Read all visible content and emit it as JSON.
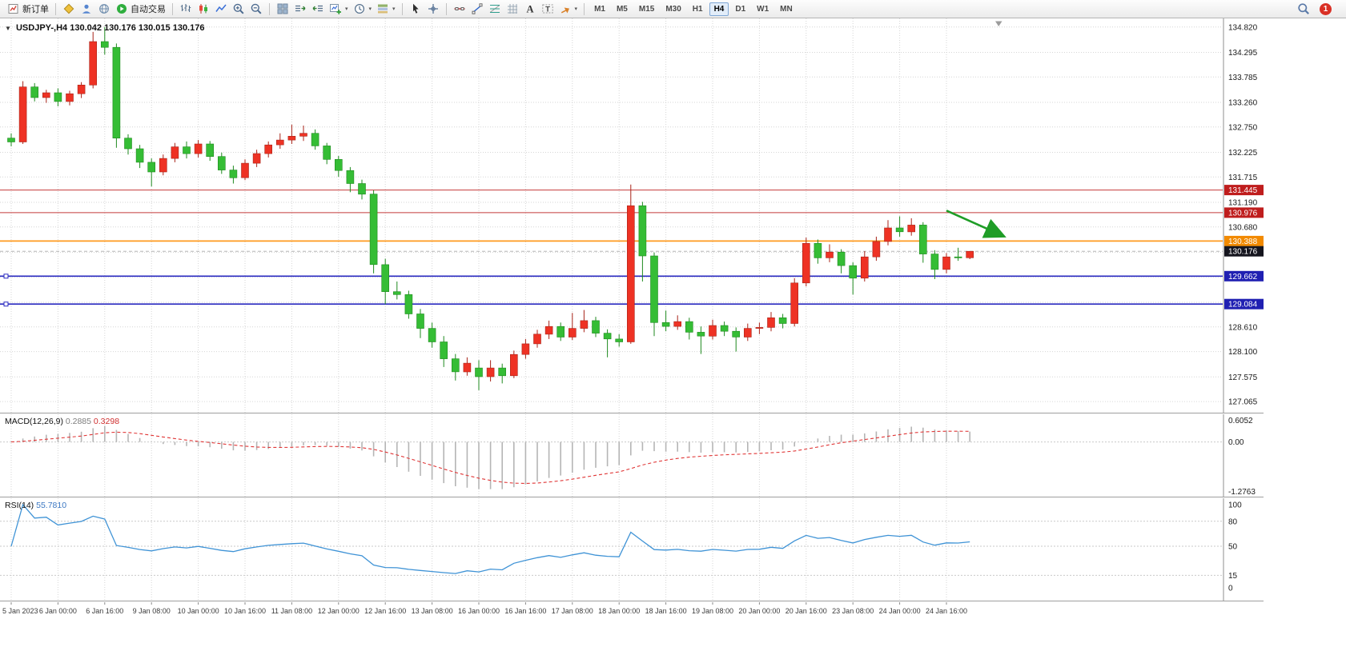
{
  "toolbar": {
    "groups": [
      {
        "items": [
          {
            "icon": "order",
            "label": "新订单",
            "name": "new-order-button"
          }
        ]
      },
      {
        "items": [
          {
            "icon": "wizard",
            "name": "wizard-button"
          },
          {
            "icon": "profile",
            "name": "profile-button"
          },
          {
            "icon": "globe",
            "name": "market-watch-button"
          },
          {
            "icon": "autotrade",
            "label": "自动交易",
            "name": "autotrading-button"
          }
        ]
      },
      {
        "items": [
          {
            "icon": "bars",
            "name": "bar-chart-button"
          },
          {
            "icon": "candles",
            "name": "candlestick-chart-button"
          },
          {
            "icon": "linechart",
            "name": "line-chart-button"
          },
          {
            "icon": "zoomin",
            "name": "zoom-in-button"
          },
          {
            "icon": "zoomout",
            "name": "zoom-out-button"
          }
        ]
      },
      {
        "items": [
          {
            "icon": "tile",
            "name": "tile-windows-button"
          },
          {
            "icon": "autoscroll",
            "name": "auto-scroll-button"
          },
          {
            "icon": "chartshift",
            "name": "chart-shift-button"
          },
          {
            "icon": "newchart",
            "caret": true,
            "name": "new-chart-button"
          },
          {
            "icon": "period",
            "caret": true,
            "name": "periods-button"
          },
          {
            "icon": "template",
            "caret": true,
            "name": "templates-button"
          }
        ]
      },
      {
        "items": [
          {
            "icon": "cursor",
            "name": "cursor-tool-button"
          },
          {
            "icon": "crosshair",
            "name": "crosshair-tool-button"
          }
        ]
      },
      {
        "items": [
          {
            "icon": "hline",
            "name": "horizontal-line-tool-button"
          },
          {
            "icon": "tline",
            "name": "trendline-tool-button"
          },
          {
            "icon": "fibo",
            "name": "fibonacci-tool-button"
          },
          {
            "icon": "gridtool",
            "name": "grid-tool-button"
          },
          {
            "icon": "textA",
            "name": "text-tool-button"
          },
          {
            "icon": "labelT",
            "name": "label-tool-button"
          },
          {
            "icon": "shapes",
            "caret": true,
            "name": "shapes-tool-button"
          }
        ]
      }
    ],
    "timeframes": [
      "M1",
      "M5",
      "M15",
      "M30",
      "H1",
      "H4",
      "D1",
      "W1",
      "MN"
    ],
    "active_timeframe": "H4",
    "badge": "1"
  },
  "chart_data": {
    "type": "candlestick",
    "symbol_title": "USDJPY-,H4",
    "ohlc_title": "130.042 130.176 130.015 130.176",
    "price_range": {
      "min": 126.95,
      "max": 134.95
    },
    "price_ticks": [
      "134.820",
      "134.295",
      "133.785",
      "133.260",
      "132.750",
      "132.225",
      "131.715",
      "131.190",
      "130.680",
      "130.155",
      "129.645",
      "129.120",
      "128.610",
      "128.100",
      "127.575",
      "127.065"
    ],
    "time_labels": [
      "5 Jan 2023",
      "6 Jan 00:00",
      "6 Jan 16:00",
      "9 Jan 08:00",
      "10 Jan 00:00",
      "10 Jan 16:00",
      "11 Jan 08:00",
      "12 Jan 00:00",
      "12 Jan 16:00",
      "13 Jan 08:00",
      "16 Jan 00:00",
      "16 Jan 16:00",
      "17 Jan 08:00",
      "18 Jan 00:00",
      "18 Jan 16:00",
      "19 Jan 08:00",
      "20 Jan 00:00",
      "20 Jan 16:00",
      "23 Jan 08:00",
      "24 Jan 00:00",
      "24 Jan 16:00"
    ],
    "label_every": 4,
    "colors": {
      "bull": "#ee3224",
      "bull_stroke": "#a82318",
      "bear": "#35bd35",
      "bear_stroke": "#1f8a1f"
    },
    "candles": [
      [
        132.52,
        132.62,
        132.35,
        132.44
      ],
      [
        132.44,
        133.7,
        132.4,
        133.58
      ],
      [
        133.58,
        133.66,
        133.28,
        133.36
      ],
      [
        133.36,
        133.52,
        133.25,
        133.46
      ],
      [
        133.46,
        133.55,
        133.18,
        133.28
      ],
      [
        133.28,
        133.5,
        133.2,
        133.44
      ],
      [
        133.44,
        133.68,
        133.35,
        133.62
      ],
      [
        133.62,
        134.72,
        133.55,
        134.52
      ],
      [
        134.52,
        134.82,
        134.25,
        134.4
      ],
      [
        134.4,
        134.48,
        132.32,
        132.52
      ],
      [
        132.52,
        132.6,
        132.18,
        132.3
      ],
      [
        132.3,
        132.38,
        131.9,
        132.02
      ],
      [
        132.02,
        132.1,
        131.52,
        131.82
      ],
      [
        131.82,
        132.18,
        131.75,
        132.1
      ],
      [
        132.1,
        132.42,
        132.02,
        132.34
      ],
      [
        132.34,
        132.45,
        132.1,
        132.2
      ],
      [
        132.2,
        132.48,
        132.12,
        132.4
      ],
      [
        132.4,
        132.46,
        132.05,
        132.14
      ],
      [
        132.14,
        132.22,
        131.78,
        131.86
      ],
      [
        131.86,
        131.95,
        131.58,
        131.7
      ],
      [
        131.7,
        132.08,
        131.65,
        132.0
      ],
      [
        132.0,
        132.28,
        131.92,
        132.2
      ],
      [
        132.2,
        132.45,
        132.12,
        132.38
      ],
      [
        132.38,
        132.62,
        132.3,
        132.48
      ],
      [
        132.48,
        132.8,
        132.4,
        132.56
      ],
      [
        132.56,
        132.78,
        132.46,
        132.62
      ],
      [
        132.62,
        132.7,
        132.28,
        132.36
      ],
      [
        132.36,
        132.42,
        131.98,
        132.08
      ],
      [
        132.08,
        132.15,
        131.72,
        131.85
      ],
      [
        131.85,
        131.92,
        131.4,
        131.58
      ],
      [
        131.58,
        131.66,
        131.25,
        131.36
      ],
      [
        131.36,
        131.44,
        129.72,
        129.9
      ],
      [
        129.9,
        130.02,
        129.08,
        129.34
      ],
      [
        129.34,
        129.55,
        129.18,
        129.28
      ],
      [
        129.28,
        129.36,
        128.78,
        128.88
      ],
      [
        128.88,
        128.98,
        128.38,
        128.58
      ],
      [
        128.58,
        128.7,
        128.18,
        128.3
      ],
      [
        128.3,
        128.42,
        127.78,
        127.95
      ],
      [
        127.95,
        128.05,
        127.5,
        127.68
      ],
      [
        127.68,
        127.98,
        127.6,
        127.86
      ],
      [
        127.76,
        127.92,
        127.3,
        127.58
      ],
      [
        127.58,
        127.92,
        127.48,
        127.76
      ],
      [
        127.76,
        127.85,
        127.44,
        127.6
      ],
      [
        127.6,
        128.12,
        127.55,
        128.04
      ],
      [
        128.04,
        128.36,
        127.95,
        128.26
      ],
      [
        128.26,
        128.55,
        128.18,
        128.46
      ],
      [
        128.46,
        128.74,
        128.36,
        128.62
      ],
      [
        128.62,
        128.7,
        128.32,
        128.4
      ],
      [
        128.4,
        128.9,
        128.34,
        128.58
      ],
      [
        128.58,
        128.96,
        128.5,
        128.74
      ],
      [
        128.74,
        128.82,
        128.4,
        128.48
      ],
      [
        128.48,
        128.56,
        127.98,
        128.36
      ],
      [
        128.36,
        128.46,
        128.2,
        128.3
      ],
      [
        128.3,
        131.56,
        128.26,
        131.12
      ],
      [
        131.12,
        131.2,
        129.55,
        130.08
      ],
      [
        130.08,
        130.15,
        128.42,
        128.7
      ],
      [
        128.7,
        128.95,
        128.52,
        128.62
      ],
      [
        128.62,
        128.85,
        128.55,
        128.72
      ],
      [
        128.72,
        128.8,
        128.35,
        128.5
      ],
      [
        128.5,
        128.62,
        128.05,
        128.42
      ],
      [
        128.42,
        128.76,
        128.35,
        128.64
      ],
      [
        128.64,
        128.72,
        128.42,
        128.52
      ],
      [
        128.52,
        128.6,
        128.1,
        128.4
      ],
      [
        128.4,
        128.68,
        128.32,
        128.58
      ],
      [
        128.58,
        128.7,
        128.46,
        128.6
      ],
      [
        128.6,
        128.92,
        128.52,
        128.8
      ],
      [
        128.8,
        128.88,
        128.58,
        128.68
      ],
      [
        128.68,
        129.62,
        128.62,
        129.52
      ],
      [
        129.52,
        130.46,
        129.45,
        130.34
      ],
      [
        130.34,
        130.42,
        129.92,
        130.04
      ],
      [
        130.04,
        130.32,
        129.95,
        130.16
      ],
      [
        130.16,
        130.22,
        129.72,
        129.88
      ],
      [
        129.88,
        129.95,
        129.28,
        129.62
      ],
      [
        129.62,
        130.18,
        129.55,
        130.06
      ],
      [
        130.06,
        130.48,
        129.98,
        130.38
      ],
      [
        130.38,
        130.82,
        130.3,
        130.66
      ],
      [
        130.66,
        130.9,
        130.48,
        130.58
      ],
      [
        130.58,
        130.86,
        130.5,
        130.72
      ],
      [
        130.72,
        130.78,
        129.94,
        130.12
      ],
      [
        130.12,
        130.2,
        129.6,
        129.8
      ],
      [
        129.8,
        130.14,
        129.72,
        130.06
      ],
      [
        130.06,
        130.25,
        129.98,
        130.04
      ],
      [
        130.042,
        130.176,
        130.015,
        130.176
      ]
    ],
    "hlines": [
      {
        "label": "131.445",
        "price": 131.445,
        "color": "#c43a3a",
        "width": 1,
        "tag_bg": "#bf1d1d"
      },
      {
        "label": "130.976",
        "price": 130.976,
        "color": "#c43a3a",
        "width": 1,
        "tag_bg": "#bf1d1d"
      },
      {
        "label": "130.388",
        "price": 130.388,
        "color": "#ff9a1f",
        "width": 1.7,
        "tag_bg": "#f28a00"
      },
      {
        "label": "129.662",
        "price": 129.662,
        "color": "#2a2ac0",
        "width": 1.7,
        "tag_bg": "#2020b2",
        "anchors": true
      },
      {
        "label": "129.084",
        "price": 129.084,
        "color": "#2a2ac0",
        "width": 1.7,
        "tag_bg": "#2020b2",
        "anchors": true
      }
    ],
    "bid": {
      "label": "130.176",
      "price": 130.176,
      "tag_bg": "#15151e",
      "line_color": "#aaaaaa"
    },
    "arrow": {
      "from_candle": 80,
      "from_price": 131.02,
      "to_candle": 84.8,
      "to_price": 130.5,
      "color": "#1f9d27"
    },
    "macd": {
      "header": "MACD(12,26,9)",
      "values": [
        "0.2885",
        "0.3298"
      ],
      "axis": [
        "0.6052",
        "0.00",
        "-1.2763"
      ],
      "scale_max": 0.6052,
      "scale_min": -1.2763,
      "params": [
        12,
        26,
        9
      ],
      "histogram_color": "#b5b5b5",
      "signal_color": "#e03636"
    },
    "rsi": {
      "header": "RSI(14)",
      "value": "55.7810",
      "period": 14,
      "axis": [
        "100",
        "80",
        "50",
        "15",
        "0"
      ],
      "levels": [
        80,
        50,
        15
      ],
      "line_color": "#3f93d6"
    }
  }
}
